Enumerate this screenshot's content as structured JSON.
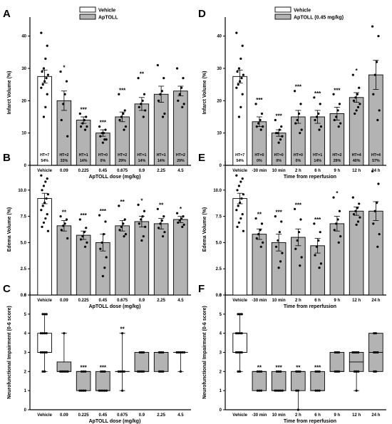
{
  "colors": {
    "vehicle": "#ffffff",
    "treated": "#b3b3b3",
    "stroke": "#000000",
    "point": "#000000"
  },
  "chart_data": [
    {
      "panel": "A",
      "type": "bar",
      "legend": [
        "Vehicle",
        "ApTOLL"
      ],
      "legend_position": "top-left",
      "xlabel": "ApTOLL dose (mg/kg)",
      "ylabel": "Infarct Volume (%)",
      "ylim": [
        0,
        45
      ],
      "yticks": [
        0,
        10,
        20,
        30,
        40
      ],
      "categories": [
        "Vehicle",
        "0.09",
        "0.225",
        "0.45",
        "0.675",
        "0.9",
        "2.25",
        "4.5"
      ],
      "values": [
        27.5,
        20,
        14,
        10,
        15,
        19,
        22,
        23
      ],
      "errors": [
        2,
        3,
        1,
        1,
        1.5,
        2,
        2.5,
        1.5
      ],
      "significance": [
        "",
        "*",
        "***",
        "***",
        "***",
        "**",
        "",
        ""
      ],
      "annotations": [
        [
          "HT=7",
          "54%"
        ],
        [
          "HT=2",
          "33%"
        ],
        [
          "HT=1",
          "14%"
        ],
        [
          "HT=0",
          "0%"
        ],
        [
          "HT=2",
          "29%"
        ],
        [
          "HT=1",
          "14%"
        ],
        [
          "HT=1",
          "14%"
        ],
        [
          "HT=2",
          "29%"
        ]
      ],
      "points": [
        [
          41,
          37,
          33,
          30,
          29,
          28,
          27,
          26,
          25,
          24,
          22,
          18,
          15
        ],
        [
          29,
          26,
          22,
          19,
          14,
          9
        ],
        [
          16,
          15,
          14,
          13,
          12,
          12,
          11
        ],
        [
          12,
          11,
          10,
          10,
          9,
          8,
          8,
          7
        ],
        [
          22,
          17,
          16,
          15,
          14,
          12,
          11
        ],
        [
          27,
          22,
          20,
          19,
          18,
          17,
          15
        ],
        [
          31,
          27,
          23,
          22,
          20,
          16,
          15
        ],
        [
          30,
          27,
          24,
          22,
          20,
          19,
          18
        ]
      ]
    },
    {
      "panel": "B",
      "type": "bar",
      "xlabel": "ApTOLL dose (mg/kg)",
      "ylabel": "Edema Volume (%)",
      "ylim": [
        0,
        12.5
      ],
      "yticks": [
        "0.0",
        "2.5",
        "5.0",
        "7.5",
        "10.0"
      ],
      "categories": [
        "Vehicle",
        "0.09",
        "0.225",
        "0.45",
        "0.675",
        "0.9",
        "2.25",
        "4.5"
      ],
      "values": [
        9.2,
        6.6,
        5.7,
        5.0,
        6.6,
        7.0,
        6.8,
        7.2
      ],
      "errors": [
        0.5,
        0.5,
        0.4,
        0.8,
        0.5,
        0.5,
        0.5,
        0.3
      ],
      "significance": [
        "",
        "**",
        "***",
        "***",
        "**",
        "*",
        "**",
        "*"
      ],
      "points": [
        [
          11.4,
          11.1,
          10.8,
          10.4,
          10.0,
          9.6,
          9.2,
          8.8,
          8.5,
          8.1,
          7.7,
          7.3,
          6.9,
          6.5,
          6.1
        ],
        [
          7.5,
          7.2,
          6.8,
          6.6,
          6.2,
          5.4
        ],
        [
          7.2,
          6.4,
          6.0,
          5.6,
          5.3,
          5.0,
          4.6
        ],
        [
          7.6,
          7.0,
          5.8,
          5.0,
          4.4,
          3.6,
          2.6,
          1.8
        ],
        [
          8.5,
          7.2,
          6.8,
          6.5,
          6.2,
          5.8,
          5.6
        ],
        [
          8.6,
          8.0,
          7.5,
          7.2,
          6.8,
          6.5,
          5.6,
          5.2
        ],
        [
          8.2,
          7.5,
          7.1,
          6.8,
          6.4,
          6.0,
          5.6
        ],
        [
          7.8,
          7.5,
          7.3,
          7.1,
          6.9,
          6.7,
          6.5
        ]
      ]
    },
    {
      "panel": "C",
      "type": "box",
      "xlabel": "ApTOLL dose (mg/kg)",
      "ylabel": "Neurofunctional Impairment (0-6 score)",
      "ylim": [
        0,
        6
      ],
      "yticks": [
        0,
        1,
        2,
        3,
        4,
        5,
        6
      ],
      "categories": [
        "Vehicle",
        "0.09",
        "0.225",
        "0.45",
        "0.675",
        "0.9",
        "2.25",
        "4.5"
      ],
      "box": [
        [
          2,
          3,
          3,
          4,
          5
        ],
        [
          2,
          2,
          2,
          2.5,
          4
        ],
        [
          1,
          1,
          2,
          2,
          2
        ],
        [
          1,
          1,
          1,
          2,
          2
        ],
        [
          1,
          2,
          2,
          2,
          4
        ],
        [
          2,
          2,
          2,
          3,
          3
        ],
        [
          2,
          2,
          3,
          3,
          3
        ],
        [
          2,
          3,
          3,
          3,
          3
        ]
      ],
      "significance": [
        "",
        "",
        "***",
        "***",
        "**",
        "",
        "",
        ""
      ],
      "points": [
        [
          5,
          5,
          5,
          4,
          4,
          4,
          4,
          3,
          3,
          3,
          3,
          2,
          2
        ],
        [
          4,
          2,
          2,
          2,
          2,
          2
        ],
        [
          2,
          2,
          2,
          1,
          1,
          1,
          1
        ],
        [
          2,
          2,
          2,
          1,
          1,
          1,
          1,
          1
        ],
        [
          4,
          2,
          2,
          2,
          2,
          1
        ],
        [
          3,
          3,
          3,
          2,
          2,
          2,
          2
        ],
        [
          3,
          3,
          3,
          2,
          2,
          2
        ],
        [
          3,
          3,
          3,
          3,
          3,
          2
        ]
      ]
    },
    {
      "panel": "D",
      "type": "bar",
      "legend": [
        "Vehicle",
        "ApTOLL (0.45 mg/kg)"
      ],
      "legend_position": "top-left",
      "xlabel": "Time from reperfusion",
      "ylabel": "Infarct Volume (%)",
      "ylim": [
        0,
        45
      ],
      "yticks": [
        0,
        10,
        20,
        30,
        40
      ],
      "categories": [
        "Vehicle",
        "-30 min",
        "10 min",
        "2 h",
        "6 h",
        "9 h",
        "12 h",
        "24 h"
      ],
      "values": [
        27.5,
        13.5,
        10,
        15,
        15,
        16,
        21,
        28
      ],
      "errors": [
        2,
        1.5,
        1,
        2,
        2,
        2,
        1.5,
        4.5
      ],
      "significance": [
        "",
        "***",
        "***",
        "***",
        "***",
        "***",
        "*",
        ""
      ],
      "annotations": [
        [
          "HT=7",
          "54%"
        ],
        [
          "HT=0",
          "0%"
        ],
        [
          "HT=0",
          "0%"
        ],
        [
          "HT=0",
          "0%"
        ],
        [
          "HT=1",
          "14%"
        ],
        [
          "HT=2",
          "29%"
        ],
        [
          "HT=4",
          "40%"
        ],
        [
          "HT=4",
          "57%"
        ]
      ],
      "points": [
        [
          41,
          37,
          33,
          30,
          29,
          28,
          27,
          26,
          25,
          24,
          22,
          18,
          15
        ],
        [
          19,
          16,
          14,
          13,
          12,
          12,
          11
        ],
        [
          14,
          12,
          11,
          10,
          10,
          9,
          8,
          7
        ],
        [
          23,
          19,
          16,
          14,
          13,
          11,
          10
        ],
        [
          21,
          19,
          16,
          15,
          14,
          12,
          11
        ],
        [
          22,
          19,
          17,
          15,
          14,
          13,
          12
        ],
        [
          28,
          24,
          22,
          21,
          20,
          19,
          18,
          17,
          16
        ],
        [
          43,
          40,
          32,
          28,
          22,
          17,
          14
        ]
      ]
    },
    {
      "panel": "E",
      "type": "bar",
      "xlabel": "Time from reperfusion",
      "ylabel": "Edema Volume (%)",
      "ylim": [
        0,
        12.5
      ],
      "yticks": [
        "0.0",
        "2.5",
        "5.0",
        "7.5",
        "10.0"
      ],
      "categories": [
        "Vehicle",
        "-30 min",
        "10 min",
        "2 h",
        "6 h",
        "9 h",
        "12 h",
        "24 h"
      ],
      "values": [
        9.2,
        5.8,
        5.0,
        5.5,
        4.7,
        6.8,
        8.0,
        8.0
      ],
      "errors": [
        0.5,
        0.5,
        0.8,
        0.8,
        0.7,
        0.7,
        0.4,
        0.9
      ],
      "significance": [
        "",
        "**",
        "***",
        "***",
        "***",
        "*",
        "",
        ""
      ],
      "points": [
        [
          11.4,
          11.1,
          10.8,
          10.4,
          10.0,
          9.6,
          9.2,
          8.8,
          8.5,
          8.1,
          7.7,
          7.3,
          6.9,
          6.5,
          6.1
        ],
        [
          7.3,
          6.8,
          6.2,
          5.8,
          5.4,
          5.0,
          4.6
        ],
        [
          7.5,
          7.0,
          6.0,
          5.2,
          4.6,
          4.0,
          3.2,
          2.6
        ],
        [
          8.2,
          7.2,
          6.0,
          5.2,
          4.4,
          3.6,
          2.8
        ],
        [
          6.8,
          6.0,
          5.2,
          4.6,
          3.8,
          3.0,
          2.6
        ],
        [
          9.3,
          8.0,
          7.2,
          6.8,
          6.2,
          5.6,
          5.0
        ],
        [
          9.3,
          8.7,
          8.3,
          8.0,
          7.7,
          7.4,
          7.0,
          6.7
        ],
        [
          11.8,
          10.6,
          8.8,
          8.0,
          6.8,
          5.8,
          4.6
        ]
      ]
    },
    {
      "panel": "F",
      "type": "box",
      "xlabel": "Time from reperfusion",
      "ylabel": "Neurofunctional Impairment (0-6 score)",
      "ylim": [
        0,
        6
      ],
      "yticks": [
        0,
        1,
        2,
        3,
        4,
        5,
        6
      ],
      "categories": [
        "Vehicle",
        "-30 min",
        "10 min",
        "2 h",
        "6 h",
        "9 h",
        "12 h",
        "24 h"
      ],
      "box": [
        [
          2,
          3,
          3,
          4,
          5
        ],
        [
          1,
          1,
          2,
          2,
          2
        ],
        [
          1,
          1,
          1,
          2,
          2
        ],
        [
          0,
          1,
          2,
          2,
          2
        ],
        [
          1,
          1,
          1,
          2,
          2
        ],
        [
          2,
          2,
          2,
          3,
          3
        ],
        [
          1,
          2,
          2.5,
          3,
          3
        ],
        [
          2,
          2,
          3,
          4,
          4
        ]
      ],
      "significance": [
        "",
        "**",
        "***",
        "**",
        "***",
        "",
        "",
        ""
      ],
      "points": [
        [
          5,
          5,
          5,
          4,
          4,
          4,
          4,
          3,
          3,
          3,
          3,
          2,
          2
        ],
        [
          2,
          2,
          2,
          1,
          1,
          1
        ],
        [
          2,
          2,
          2,
          1,
          1,
          1,
          1,
          1
        ],
        [
          2,
          2,
          2,
          1,
          1,
          0
        ],
        [
          2,
          2,
          2,
          1,
          1,
          1
        ],
        [
          3,
          3,
          3,
          2,
          2,
          2
        ],
        [
          3,
          3,
          3,
          3,
          2,
          2,
          2,
          1
        ],
        [
          4,
          4,
          3,
          3,
          3,
          2,
          2
        ]
      ]
    }
  ]
}
